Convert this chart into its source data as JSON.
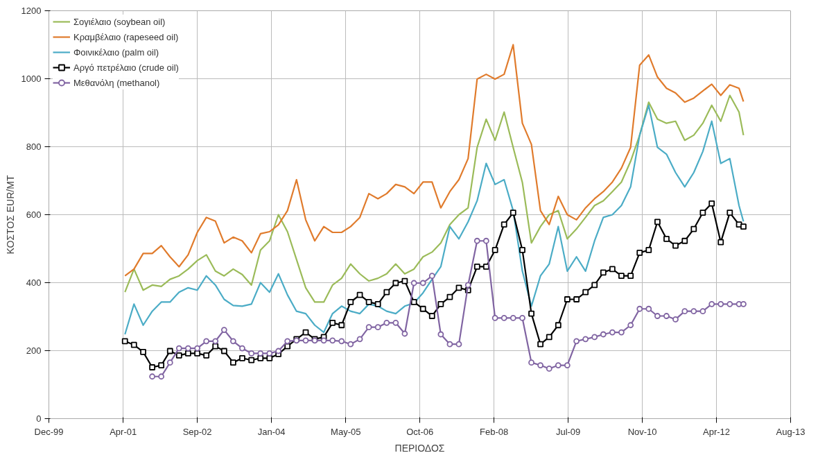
{
  "chart_data": {
    "type": "line",
    "xlabel": "ΠΕΡΙΟΔΟΣ",
    "ylabel": "ΚΟΣΤΟΣ EUR/MT",
    "x": [
      "2001-05",
      "2001-07",
      "2001-09",
      "2001-11",
      "2002-01",
      "2002-03",
      "2002-05",
      "2002-07",
      "2002-09",
      "2002-11",
      "2003-01",
      "2003-03",
      "2003-05",
      "2003-07",
      "2003-09",
      "2003-11",
      "2004-01",
      "2004-03",
      "2004-05",
      "2004-07",
      "2004-09",
      "2004-11",
      "2005-01",
      "2005-03",
      "2005-05",
      "2005-07",
      "2005-09",
      "2005-11",
      "2006-01",
      "2006-03",
      "2006-05",
      "2006-07",
      "2006-09",
      "2006-11",
      "2007-01",
      "2007-03",
      "2007-05",
      "2007-07",
      "2007-09",
      "2007-11",
      "2008-01",
      "2008-03",
      "2008-05",
      "2008-07",
      "2008-09",
      "2008-11",
      "2009-01",
      "2009-03",
      "2009-05",
      "2009-07",
      "2009-09",
      "2009-11",
      "2010-01",
      "2010-03",
      "2010-05",
      "2010-07",
      "2010-09",
      "2010-11",
      "2011-01",
      "2011-03",
      "2011-05",
      "2011-07",
      "2011-09",
      "2011-11",
      "2012-01",
      "2012-03",
      "2012-05",
      "2012-07",
      "2012-09",
      "2012-10"
    ],
    "series": [
      {
        "name": "Σογιέλαιο (soybean oil)",
        "color": "#9bbb59",
        "marker": "none",
        "values": [
          372,
          440,
          378,
          393,
          389,
          410,
          420,
          440,
          465,
          482,
          434,
          420,
          440,
          424,
          393,
          496,
          523,
          600,
          550,
          468,
          385,
          343,
          343,
          393,
          413,
          455,
          426,
          405,
          413,
          426,
          455,
          426,
          440,
          476,
          490,
          517,
          571,
          600,
          620,
          798,
          881,
          819,
          902,
          798,
          695,
          517,
          565,
          600,
          612,
          529,
          558,
          592,
          627,
          641,
          668,
          696,
          757,
          834,
          931,
          881,
          869,
          875,
          819,
          834,
          869,
          922,
          875,
          951,
          902,
          834
        ]
      },
      {
        "name": "Κραμβέλαιο (rapeseed oil)",
        "color": "#e07b2c",
        "marker": "none",
        "values": [
          420,
          440,
          486,
          486,
          509,
          476,
          447,
          482,
          548,
          592,
          581,
          517,
          534,
          523,
          488,
          544,
          550,
          570,
          612,
          703,
          585,
          523,
          565,
          548,
          548,
          565,
          592,
          662,
          647,
          662,
          689,
          682,
          662,
          696,
          696,
          620,
          668,
          703,
          765,
          999,
          1013,
          999,
          1013,
          1100,
          869,
          807,
          612,
          571,
          654,
          600,
          585,
          620,
          647,
          668,
          696,
          737,
          798,
          1040,
          1070,
          1005,
          972,
          958,
          931,
          943,
          964,
          984,
          951,
          982,
          972,
          933
        ]
      },
      {
        "name": "Φοινικέλαιο (palm oil)",
        "color": "#4bacc6",
        "marker": "none",
        "values": [
          248,
          337,
          275,
          316,
          343,
          343,
          372,
          385,
          378,
          420,
          393,
          351,
          333,
          331,
          337,
          400,
          372,
          426,
          364,
          316,
          309,
          275,
          254,
          309,
          331,
          316,
          309,
          337,
          331,
          316,
          309,
          331,
          340,
          370,
          410,
          447,
          565,
          529,
          579,
          641,
          751,
          689,
          703,
          612,
          434,
          331,
          420,
          455,
          565,
          434,
          476,
          434,
          523,
          592,
          600,
          627,
          682,
          834,
          922,
          798,
          778,
          724,
          682,
          724,
          786,
          875,
          751,
          765,
          627,
          580
        ]
      },
      {
        "name": "Αργό πετρέλαιο (crude oil)",
        "color": "#000000",
        "marker": "square",
        "values": [
          228,
          217,
          196,
          151,
          157,
          199,
          186,
          192,
          192,
          186,
          213,
          199,
          165,
          178,
          172,
          178,
          178,
          190,
          213,
          234,
          254,
          234,
          240,
          282,
          275,
          343,
          364,
          343,
          337,
          372,
          399,
          405,
          343,
          323,
          302,
          337,
          358,
          385,
          378,
          447,
          447,
          496,
          571,
          606,
          496,
          309,
          219,
          240,
          275,
          351,
          351,
          372,
          393,
          430,
          440,
          420,
          420,
          488,
          496,
          579,
          529,
          509,
          523,
          558,
          606,
          633,
          519,
          606,
          571,
          565
        ]
      },
      {
        "name": "Μεθανόλη (methanol)",
        "color": "#8064a2",
        "marker": "circle",
        "values": [
          null,
          null,
          null,
          124,
          124,
          165,
          207,
          207,
          207,
          228,
          228,
          261,
          228,
          207,
          192,
          192,
          192,
          199,
          228,
          230,
          230,
          230,
          230,
          230,
          228,
          219,
          234,
          269,
          269,
          282,
          282,
          250,
          399,
          399,
          420,
          248,
          219,
          219,
          393,
          523,
          523,
          296,
          296,
          296,
          296,
          165,
          157,
          147,
          157,
          157,
          228,
          234,
          240,
          248,
          254,
          254,
          275,
          323,
          323,
          302,
          302,
          292,
          316,
          316,
          316,
          337,
          337,
          337,
          337,
          337
        ]
      }
    ],
    "xlim": [
      "1999-12-05",
      "2013-08-15"
    ],
    "xticks": [
      {
        "value": "1999-12-05",
        "label": "Dec-99"
      },
      {
        "value": "2001-04-19",
        "label": "Apr-01"
      },
      {
        "value": "2002-09-01",
        "label": "Sep-02"
      },
      {
        "value": "2004-01-14",
        "label": "Jan-04"
      },
      {
        "value": "2005-05-29",
        "label": "May-05"
      },
      {
        "value": "2006-10-11",
        "label": "Oct-06"
      },
      {
        "value": "2008-02-23",
        "label": "Feb-08"
      },
      {
        "value": "2009-07-07",
        "label": "Jul-09"
      },
      {
        "value": "2010-11-19",
        "label": "Nov-10"
      },
      {
        "value": "2012-04-02",
        "label": "Apr-12"
      },
      {
        "value": "2013-08-15",
        "label": "Aug-13"
      }
    ],
    "ylim": [
      0,
      1200
    ],
    "yticks": [
      0,
      200,
      400,
      600,
      800,
      1000,
      1200
    ],
    "grid": true,
    "legend": "top left",
    "line_style": "solid"
  }
}
